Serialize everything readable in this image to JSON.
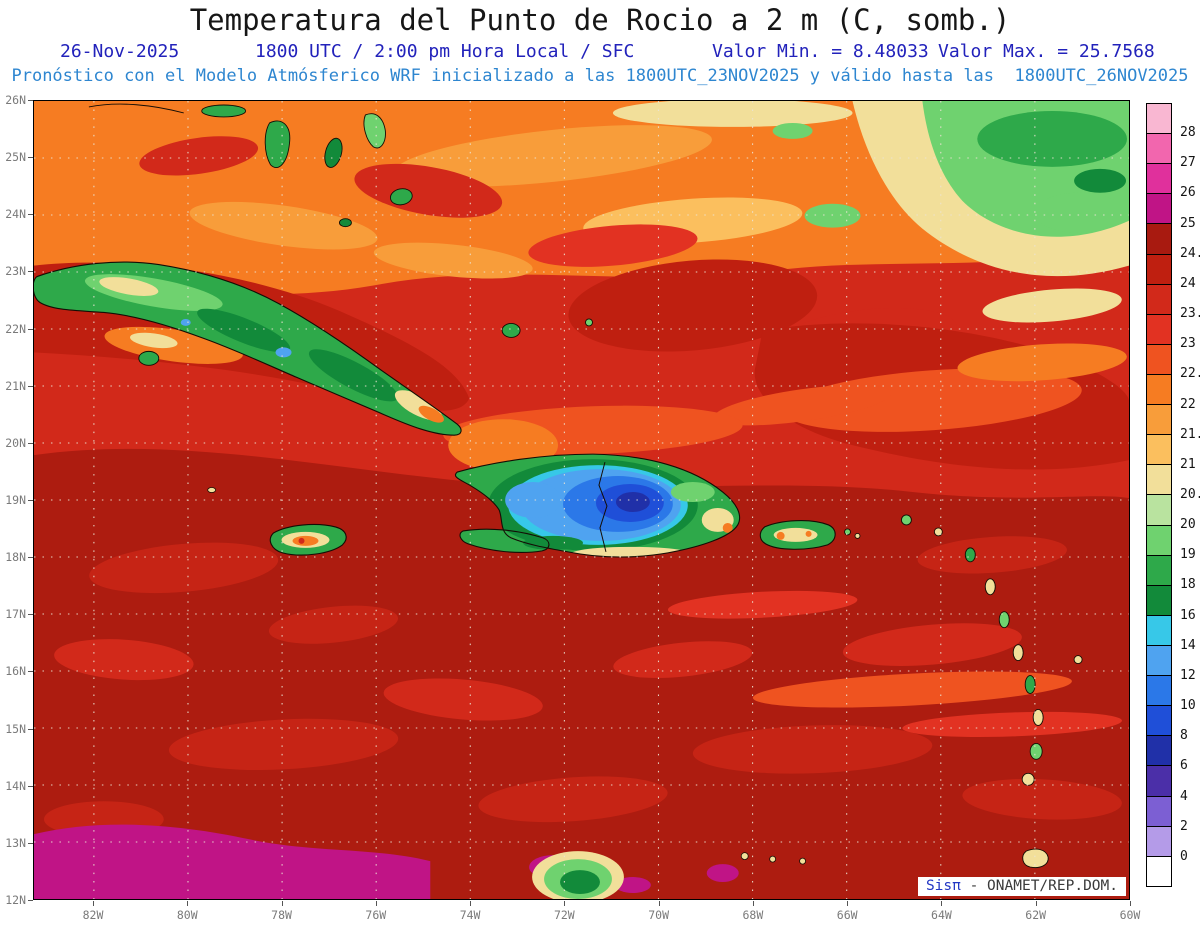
{
  "header": {
    "title": "Temperatura del Punto de Rocio a 2 m (C, somb.)",
    "info": {
      "date": "26-Nov-2025",
      "time_line": "1800 UTC / 2:00 pm Hora Local / SFC",
      "min_label": "Valor Min. = 8.48033",
      "max_label": "Valor Max. = 25.7568"
    },
    "forecast_line": "Pronóstico con el Modelo Atmósferico WRF inicializado a las 1800UTC_23NOV2025 y válido hasta las  1800UTC_26NOV2025"
  },
  "map": {
    "lat_ticks": [
      "26N",
      "25N",
      "24N",
      "23N",
      "22N",
      "21N",
      "20N",
      "19N",
      "18N",
      "17N",
      "16N",
      "15N",
      "14N",
      "13N",
      "12N"
    ],
    "lon_ticks": [
      "82W",
      "80W",
      "78W",
      "76W",
      "74W",
      "72W",
      "70W",
      "68W",
      "66W",
      "64W",
      "62W",
      "60W"
    ]
  },
  "colorbar": {
    "unit": "C",
    "labels": [
      "28",
      "27",
      "26",
      "25",
      "24.5",
      "24",
      "23.5",
      "23",
      "22.5",
      "22",
      "21.5",
      "21",
      "20.5",
      "20",
      "19",
      "18",
      "16",
      "14",
      "12",
      "10",
      "8",
      "6",
      "4",
      "2",
      "0"
    ],
    "colors": [
      "#f9b7d2",
      "#f266ae",
      "#e0309c",
      "#c01486",
      "#a81a10",
      "#bf1f10",
      "#d2291a",
      "#e23222",
      "#ef5320",
      "#f67c22",
      "#f89d3a",
      "#fbbf5e",
      "#f2df9a",
      "#b9e39f",
      "#6fd26f",
      "#2ea94a",
      "#128a3a",
      "#37c8e8",
      "#4fa3f0",
      "#2b78e8",
      "#1f4fd8",
      "#2030a8",
      "#4b2fa8",
      "#7c5fd3",
      "#b49be8",
      "#ffffff"
    ]
  },
  "credit": {
    "brand": "Sisπ",
    "text": "- ONAMET/REP.DOM."
  },
  "palette": {
    "title_text": "#161616",
    "info_text_blue": "#2222bb",
    "model_text_blue": "#2e86d0",
    "axis_gray": "#7a7a7a",
    "credit_brand_blue": "#2236c4"
  },
  "chart_data": {
    "type": "heatmap",
    "title": "Temperatura del Punto de Rocio a 2 m (C, somb.)",
    "variable": "Dew point temperature at 2 m, shaded (C)",
    "valid_time": "26-Nov-2025 1800 UTC / 2:00 pm Hora Local / SFC",
    "model": "WRF inicializado 1800UTC_23NOV2025, válido hasta 1800UTC_26NOV2025",
    "value_min": 8.48033,
    "value_max": 25.7568,
    "lat_ticks": [
      "12N",
      "26N"
    ],
    "lon_ticks": [
      "82W",
      "60W"
    ],
    "scale_levels_celsius": [
      0,
      2,
      4,
      6,
      8,
      10,
      12,
      14,
      16,
      18,
      19,
      20,
      20.5,
      21,
      21.5,
      22,
      22.5,
      23,
      23.5,
      24,
      24.5,
      25,
      26,
      27,
      28
    ],
    "legend_position": "right",
    "grid": "dotted 1-degree latitude / 2-degree longitude"
  }
}
